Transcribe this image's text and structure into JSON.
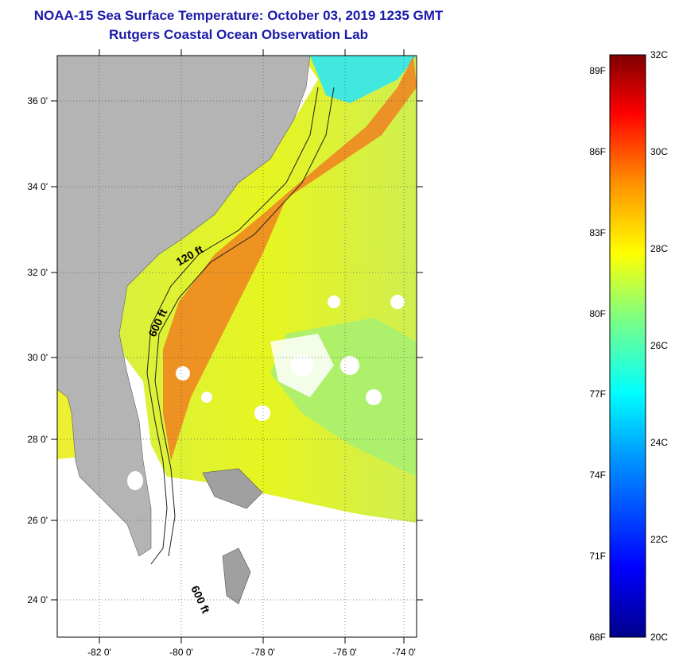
{
  "header": {
    "title": "NOAA-15 Sea Surface Temperature:  October 03, 2019 1235 GMT",
    "subtitle": "Rutgers Coastal Ocean Observation Lab"
  },
  "map": {
    "lat_labels": [
      "36 0'",
      "34 0'",
      "32 0'",
      "30 0'",
      "28 0'",
      "26 0'",
      "24 0'"
    ],
    "lon_labels": [
      "-82 0'",
      "-80 0'",
      "-78 0'",
      "-76 0'",
      "-74 0'"
    ],
    "contour_labels": [
      "120 ft",
      "600 ft",
      "600 ft"
    ],
    "land_color": "#b4b4b4"
  },
  "colorbar": {
    "f_labels": [
      "89F",
      "86F",
      "83F",
      "80F",
      "77F",
      "74F",
      "71F",
      "68F"
    ],
    "c_labels": [
      "32C",
      "30C",
      "28C",
      "26C",
      "24C",
      "22C",
      "20C"
    ],
    "min_c": 20,
    "max_c": 32,
    "colors": [
      "#00008b",
      "#0000ff",
      "#0090ff",
      "#00ffff",
      "#80ff80",
      "#ffff00",
      "#ff9000",
      "#ff0000",
      "#7f0000"
    ]
  }
}
